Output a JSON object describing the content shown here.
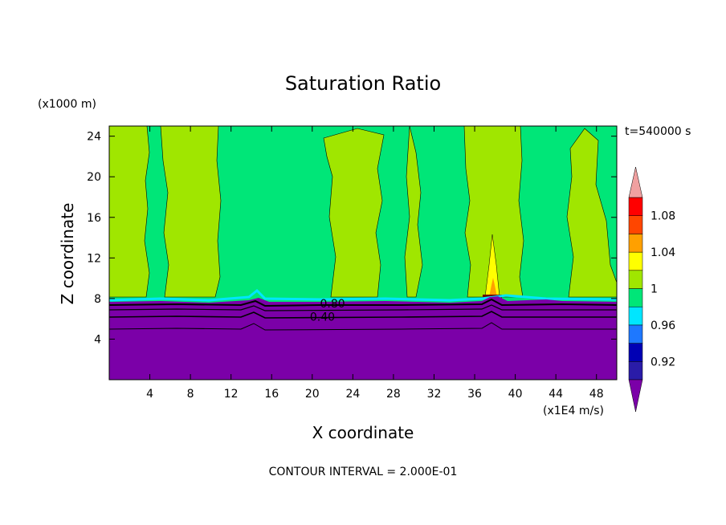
{
  "chart_data": {
    "type": "heatmap",
    "title": "Saturation Ratio",
    "xlabel": "X coordinate",
    "ylabel": "Z coordinate",
    "x_unit": "(x1E4 m/s)",
    "y_unit": "(x1000 m)",
    "time_label": "t=540000 s",
    "footer": "CONTOUR INTERVAL = 2.000E-01",
    "xlim": [
      0,
      50
    ],
    "ylim": [
      0,
      25
    ],
    "x_ticks": [
      4,
      8,
      12,
      16,
      20,
      24,
      28,
      32,
      36,
      40,
      44,
      48
    ],
    "y_ticks": [
      4,
      8,
      12,
      16,
      20,
      24
    ],
    "contour_labels": [
      {
        "text": "0.80",
        "x": 22,
        "z": 7.5
      },
      {
        "text": "0.40",
        "x": 21,
        "z": 6.2
      }
    ],
    "colorbar": {
      "labels": [
        "1.08",
        "1.04",
        "1",
        "0.96",
        "0.92"
      ],
      "levels": [
        {
          "color": "#7b00a8",
          "range": "< 0.90"
        },
        {
          "color": "#2a1ca8",
          "range": "0.90-0.92"
        },
        {
          "color": "#0000b4",
          "range": "0.92-0.94"
        },
        {
          "color": "#1e78ff",
          "range": "0.94-0.96"
        },
        {
          "color": "#00e6ff",
          "range": "0.96-0.98"
        },
        {
          "color": "#00e678",
          "range": "0.98-1.00"
        },
        {
          "color": "#a0e600",
          "range": "1.00-1.02"
        },
        {
          "color": "#ffff00",
          "range": "1.02-1.04"
        },
        {
          "color": "#ffa000",
          "range": "1.04-1.06"
        },
        {
          "color": "#ff4600",
          "range": "1.06-1.08"
        },
        {
          "color": "#ff0000",
          "range": "1.08-1.10"
        },
        {
          "color": "#f0a0a0",
          "range": "> 1.10"
        }
      ]
    },
    "fields": {
      "lower_layer": {
        "value": "< 0.90",
        "z_top": 7.6,
        "color": "#7b00a8"
      },
      "near_saturated": {
        "value": "0.98-1.00",
        "color": "#00e678"
      },
      "supersaturated": {
        "value": "1.00-1.02",
        "color": "#a0e600"
      },
      "peak": {
        "value": "1.02-1.10",
        "x": 38,
        "z_top": 14.2,
        "color": "#ffff00"
      }
    }
  }
}
